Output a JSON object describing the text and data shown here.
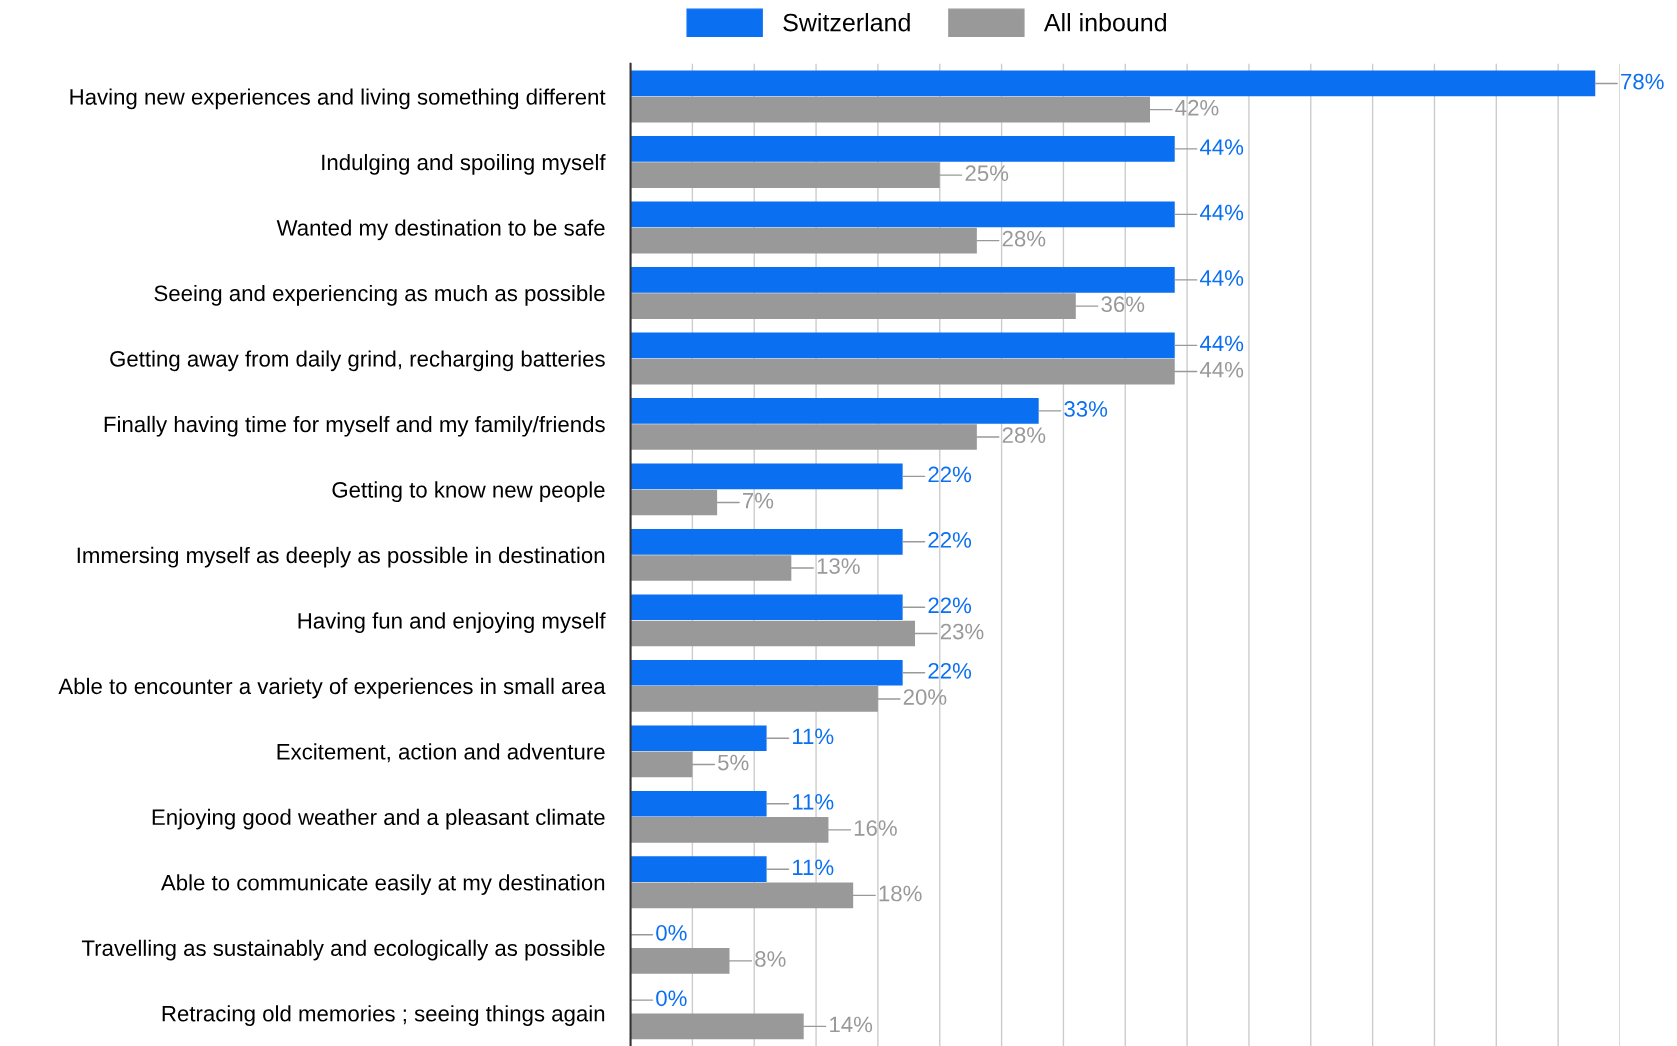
{
  "chart_data": {
    "type": "bar",
    "orientation": "horizontal",
    "categories": [
      "Having new experiences and living something different",
      "Indulging and spoiling myself",
      "Wanted my destination to be safe",
      "Seeing and experiencing as much as possible",
      "Getting away from daily grind, recharging batteries",
      "Finally having time for myself and my family/friends",
      "Getting to know new people",
      "Immersing myself as deeply as possible in destination",
      "Having fun and enjoying myself",
      "Able to encounter a variety of experiences in small area",
      "Excitement, action and adventure",
      "Enjoying good weather and a pleasant climate",
      "Able to communicate easily at my destination",
      "Travelling as sustainably and ecologically as possible",
      "Retracing old memories ; seeing things again"
    ],
    "series": [
      {
        "name": "Switzerland",
        "color": "#0a6ff0",
        "values": [
          78,
          44,
          44,
          44,
          44,
          33,
          22,
          22,
          22,
          22,
          11,
          11,
          11,
          0,
          0
        ],
        "value_labels": [
          "78%",
          "44%",
          "44%",
          "44%",
          "44%",
          "33%",
          "22%",
          "22%",
          "22%",
          "22%",
          "11%",
          "11%",
          "11%",
          "0%",
          "0%"
        ]
      },
      {
        "name": "All inbound",
        "color": "#999999",
        "values": [
          42,
          25,
          28,
          36,
          44,
          28,
          7,
          13,
          23,
          20,
          5,
          16,
          18,
          8,
          14
        ],
        "value_labels": [
          "42%",
          "25%",
          "28%",
          "36%",
          "44%",
          "28%",
          "7%",
          "13%",
          "23%",
          "20%",
          "5%",
          "16%",
          "18%",
          "8%",
          "14%"
        ]
      }
    ],
    "xlim": [
      0,
      80
    ],
    "xticks": [
      {
        "value": 0,
        "label": null
      },
      {
        "value": 5,
        "label": null
      },
      {
        "value": 10,
        "label": null
      },
      {
        "value": 15,
        "label": null
      },
      {
        "value": 20,
        "label": null
      },
      {
        "value": 25,
        "label": null
      },
      {
        "value": 30,
        "label": null
      },
      {
        "value": 35,
        "label": null
      },
      {
        "value": 40,
        "label": null
      },
      {
        "value": 45,
        "label": null
      },
      {
        "value": 50,
        "label": null
      },
      {
        "value": 55,
        "label": null
      },
      {
        "value": 60,
        "label": null
      },
      {
        "value": 65,
        "label": null
      },
      {
        "value": 70,
        "label": null
      },
      {
        "value": 75,
        "label": null
      },
      {
        "value": 80,
        "label": null
      }
    ],
    "grid": "x",
    "legend": "top",
    "tick_labels": "y"
  }
}
